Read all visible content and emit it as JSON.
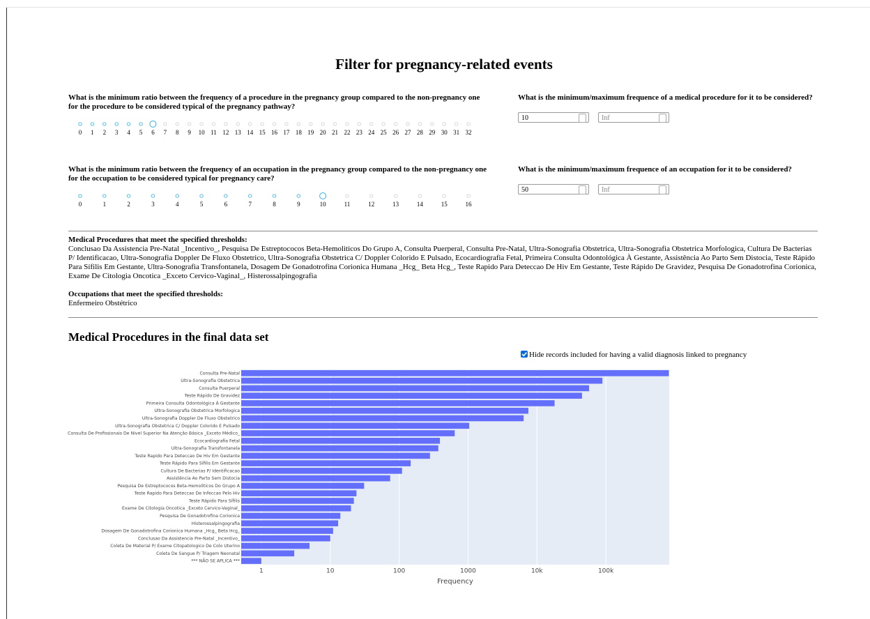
{
  "title": "Filter for pregnancy-related events",
  "filters": [
    {
      "question": "What is the minimum ratio between the frequency of a procedure in the pregnancy group compared to the non-pregnancy one for the procedure to be considered typical of the pregnancy pathway?",
      "marks": [
        0,
        1,
        2,
        3,
        4,
        5,
        6,
        7,
        8,
        9,
        10,
        11,
        12,
        13,
        14,
        15,
        16,
        17,
        18,
        19,
        20,
        21,
        22,
        23,
        24,
        25,
        26,
        27,
        28,
        29,
        30,
        31,
        32
      ],
      "value": 6,
      "range_question": "What is the minimum/maximum frequence of a medical procedure for it to be considered?",
      "min_input": "10",
      "max_placeholder": "Inf"
    },
    {
      "question": "What is the minimum ratio between the frequency of an occupation in the pregnancy group compared to the non-pregnancy one for the occupation to be considered typical for pregnancy care?",
      "marks": [
        0,
        1,
        2,
        3,
        4,
        5,
        6,
        7,
        8,
        9,
        10,
        11,
        12,
        13,
        14,
        15,
        16
      ],
      "value": 10,
      "range_question": "What is the minimum/maximum frequence of an occupation for it to be considered?",
      "min_input": "50",
      "max_placeholder": "Inf"
    }
  ],
  "results": {
    "procedures_heading": "Medical Procedures that meet the specified thresholds:",
    "procedures_text": "Conclusao Da Assistencia Pre-Natal _Incentivo_, Pesquisa De Estreptococos Beta-Hemoliticos Do Grupo A, Consulta Puerperal, Consulta Pre-Natal, Ultra-Sonografia Obstetrica, Ultra-Sonografia Obstetrica Morfologica, Cultura De Bacterias P/ Identificacao, Ultra-Sonografia Doppler De Fluxo Obstetrico, Ultra-Sonografia Obstetrica C/ Doppler Colorido E Pulsado, Ecocardiografia Fetal, Primeira Consulta Odontológica À Gestante, Assistência Ao Parto Sem Distocia, Teste Rápido Para Sífilis Em Gestante, Ultra-Sonografia Transfontanela, Dosagem De Gonadotrofina Corionica Humana _Hcg_ Beta Hcg_, Teste Rapido Para Deteccao De Hiv Em Gestante, Teste Rápido De Gravidez, Pesquisa De Gonadotrofina Corionica, Exame De Citologia Oncotica _Exceto Cervico-Vaginal_, Histerossalpingografia",
    "occupations_heading": "Occupations that meet the specified thresholds:",
    "occupations_text": "Enfermeiro Obstétrico"
  },
  "section_title": "Medical Procedures in the final data set",
  "checkbox": {
    "label": "Hide records included for having a valid diagnosis linked to pregnancy",
    "checked": true
  },
  "chart_data": {
    "type": "barh",
    "categories": [
      "Consulta Pre-Natal",
      "Ultra-Sonografia Obstetrica",
      "Consulta Puerperal",
      "Teste Rápido De Gravidez",
      "Primeira Consulta Odontológica À Gestante",
      "Ultra-Sonografia Obstetrica Morfologica",
      "Ultra-Sonografia Doppler De Fluxo Obstetrico",
      "Ultra-Sonografia Obstetrica C/ Doppler Colorido E Pulsado",
      "Consulta De Profissionais De Nivel Superior Na Atenção Básica _Exceto Médico_",
      "Ecocardiografia Fetal",
      "Ultra-Sonografia Transfontanela",
      "Teste Rapido Para Deteccao De Hiv Em Gestante",
      "Teste Rápido Para Sífilis Em Gestante",
      "Cultura De Bacterias P/ Identificacao",
      "Assistência Ao Parto Sem Distocia",
      "Pesquisa De Estreptococos Beta-Hemoliticos Do Grupo A",
      "Teste Rapido Para Deteccao De Infeccao Pelo Hiv",
      "Teste Rápido Para Sífilis",
      "Exame De Citologia Oncotica _Exceto Cervico-Vaginal_",
      "Pesquisa De Gonadotrofina Corionica",
      "Histerossalpingografia",
      "Dosagem De Gonadotrofina Corionica Humana _Hcg_ Beta Hcg_",
      "Conclusao Da Assistencia Pre-Natal _Incentivo_",
      "Coleta De Material P/ Exame Citopatologico De Colo Uterino",
      "Coleta De Sangue P/ Triagem Neonatal",
      "*** NÃO SE APLICA ***"
    ],
    "values": [
      820000,
      89000,
      57000,
      45000,
      18000,
      7500,
      6400,
      1040,
      640,
      390,
      370,
      280,
      147,
      110,
      74,
      31,
      24,
      22,
      20,
      14,
      13,
      11,
      10,
      5,
      3,
      1
    ],
    "color": "#636efa",
    "xlabel": "Frequency",
    "log_x": true,
    "xlim": [
      0.51,
      830000
    ],
    "xticks": [
      1,
      10,
      100,
      1000,
      {
        "value": 10000,
        "label": "10k"
      },
      {
        "value": 100000,
        "label": "100k"
      }
    ],
    "grid": true
  }
}
